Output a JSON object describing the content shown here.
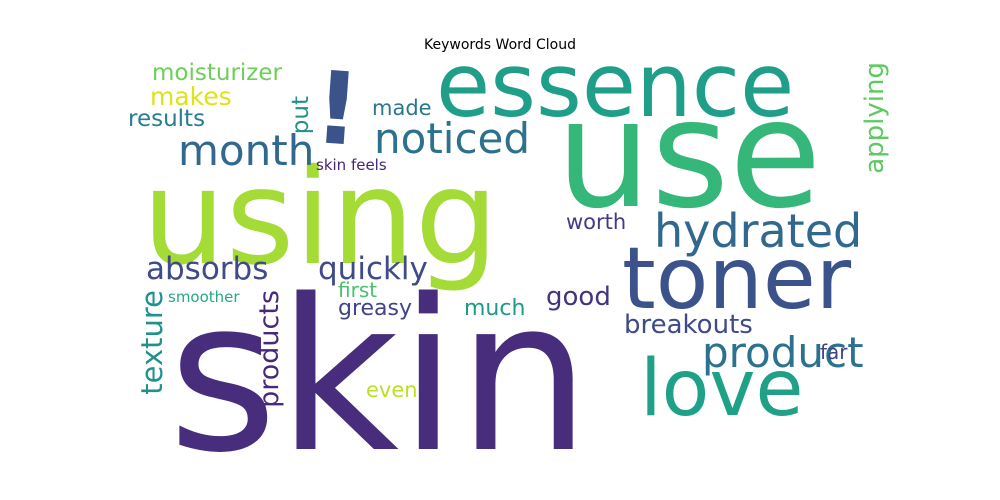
{
  "chart_data": {
    "type": "wordcloud",
    "title": "Keywords Word Cloud",
    "words": [
      {
        "text": "skin",
        "weight": 1.0,
        "color": "#472d7b"
      },
      {
        "text": "use",
        "weight": 0.95,
        "color": "#35b779"
      },
      {
        "text": "using",
        "weight": 0.88,
        "color": "#a5db36"
      },
      {
        "text": "essence",
        "weight": 0.62,
        "color": "#1f9e89"
      },
      {
        "text": "toner",
        "weight": 0.6,
        "color": "#3b528b"
      },
      {
        "text": "love",
        "weight": 0.56,
        "color": "#1fa187"
      },
      {
        "text": "!",
        "weight": 0.5,
        "color": "#3b528b"
      },
      {
        "text": "hydrated",
        "weight": 0.33,
        "color": "#31688e"
      },
      {
        "text": "product",
        "weight": 0.3,
        "color": "#2c728e"
      },
      {
        "text": "noticed",
        "weight": 0.3,
        "color": "#2c728e"
      },
      {
        "text": "month",
        "weight": 0.3,
        "color": "#31688e"
      },
      {
        "text": "absorbs",
        "weight": 0.23,
        "color": "#3e4a89"
      },
      {
        "text": "quickly",
        "weight": 0.23,
        "color": "#3e4a89"
      },
      {
        "text": "texture",
        "weight": 0.22,
        "color": "#21918c"
      },
      {
        "text": "products",
        "weight": 0.21,
        "color": "#482878"
      },
      {
        "text": "breakouts",
        "weight": 0.19,
        "color": "#3e4a89"
      },
      {
        "text": "applying",
        "weight": 0.19,
        "color": "#5ec962"
      },
      {
        "text": "good",
        "weight": 0.19,
        "color": "#46337e"
      },
      {
        "text": "makes",
        "weight": 0.19,
        "color": "#dde318"
      },
      {
        "text": "moisturizer",
        "weight": 0.17,
        "color": "#6ece58"
      },
      {
        "text": "results",
        "weight": 0.17,
        "color": "#287d8e"
      },
      {
        "text": "put",
        "weight": 0.17,
        "color": "#21918c"
      },
      {
        "text": "made",
        "weight": 0.15,
        "color": "#2a788e"
      },
      {
        "text": "worth",
        "weight": 0.15,
        "color": "#443983"
      },
      {
        "text": "greasy",
        "weight": 0.16,
        "color": "#414487"
      },
      {
        "text": "much",
        "weight": 0.16,
        "color": "#1f9a8a"
      },
      {
        "text": "first",
        "weight": 0.15,
        "color": "#4ac16d"
      },
      {
        "text": "far",
        "weight": 0.15,
        "color": "#414487"
      },
      {
        "text": "even",
        "weight": 0.15,
        "color": "#bddf26"
      },
      {
        "text": "smoother",
        "weight": 0.11,
        "color": "#22a884"
      },
      {
        "text": "skin feels",
        "weight": 0.11,
        "color": "#482475"
      }
    ]
  }
}
